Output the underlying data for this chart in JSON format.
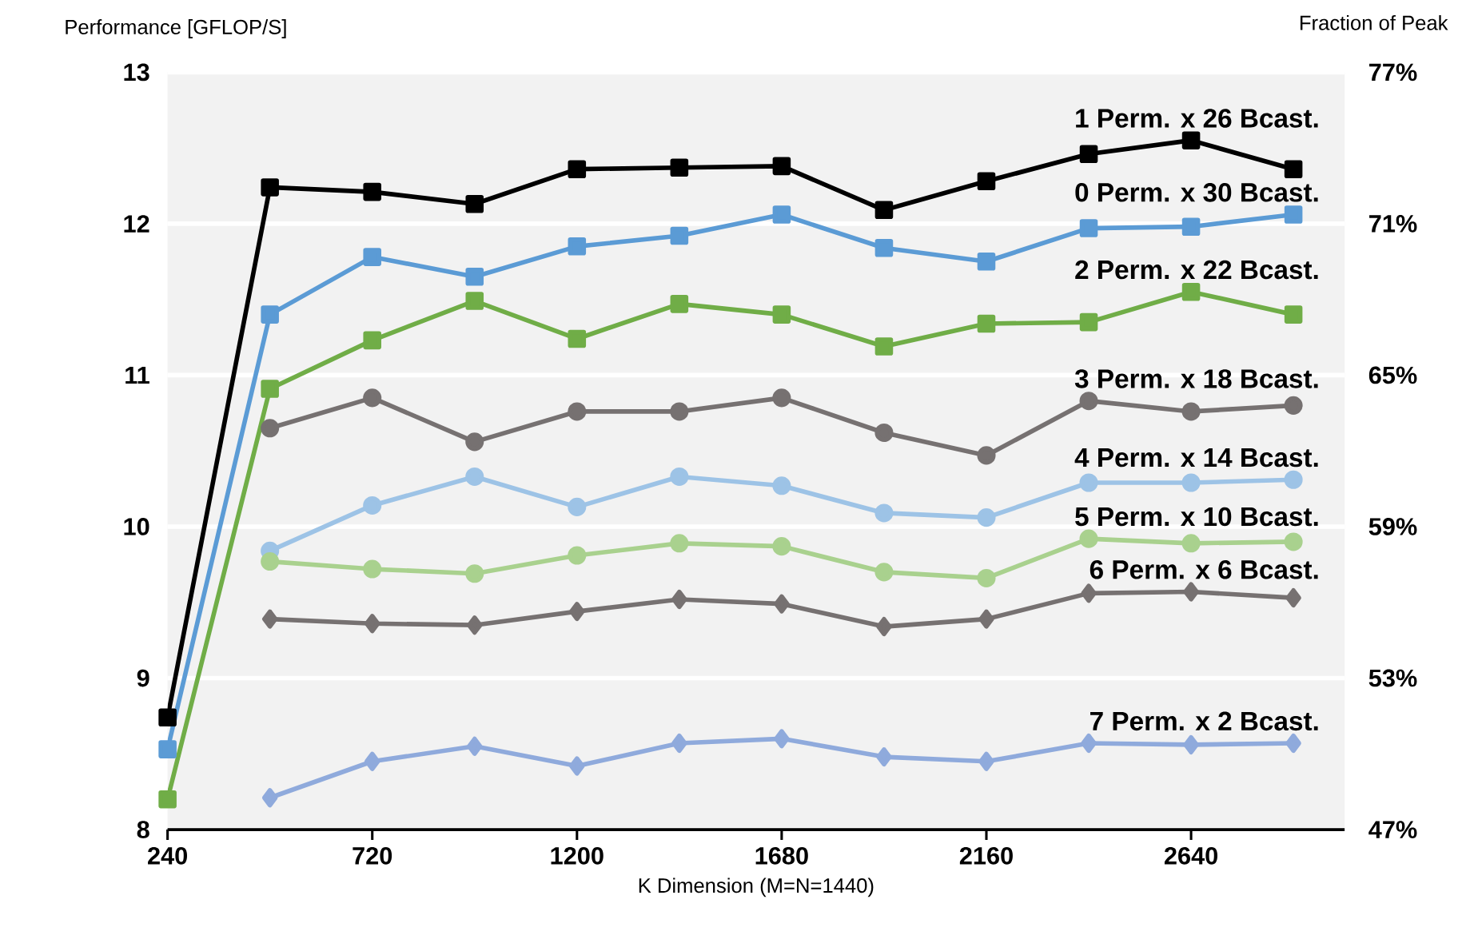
{
  "chart_data": {
    "type": "line",
    "xlabel": "K Dimension (M=N=1440)",
    "ylabel": "Performance [GFLOP/S]",
    "y2label": "Fraction of Peak",
    "x": [
      240,
      480,
      720,
      960,
      1200,
      1440,
      1680,
      1920,
      2160,
      2400,
      2640,
      2880
    ],
    "xlim": [
      240,
      3000
    ],
    "xticks": [
      240,
      720,
      1200,
      1680,
      2160,
      2640
    ],
    "ylim": [
      8,
      13
    ],
    "yticks": [
      8,
      9,
      10,
      11,
      12,
      13
    ],
    "y2lim": [
      47,
      77
    ],
    "y2ticks": [
      {
        "value": 47,
        "label": "47%"
      },
      {
        "value": 53,
        "label": "53%"
      },
      {
        "value": 59,
        "label": "59%"
      },
      {
        "value": 65,
        "label": "65%"
      },
      {
        "value": 71,
        "label": "71%"
      },
      {
        "value": 77,
        "label": "77%"
      }
    ],
    "grid": "y",
    "series": [
      {
        "name": "1 Perm. x 26 Bcast.",
        "color": "#000000",
        "marker": "square",
        "values": [
          8.74,
          12.24,
          12.21,
          12.13,
          12.36,
          12.37,
          12.38,
          12.09,
          12.28,
          12.46,
          12.55,
          12.36
        ]
      },
      {
        "name": "0 Perm. x 30 Bcast.",
        "color": "#5b9bd5",
        "marker": "square",
        "values": [
          8.53,
          11.4,
          11.78,
          11.65,
          11.85,
          11.92,
          12.06,
          11.84,
          11.75,
          11.97,
          11.98,
          12.06
        ]
      },
      {
        "name": "2 Perm. x 22 Bcast.",
        "color": "#70ad47",
        "marker": "square",
        "values": [
          8.2,
          10.91,
          11.23,
          11.49,
          11.24,
          11.47,
          11.4,
          11.19,
          11.34,
          11.35,
          11.55,
          11.4
        ]
      },
      {
        "name": "3 Perm. x 18 Bcast.",
        "color": "#767171",
        "marker": "circle",
        "values": [
          null,
          10.65,
          10.85,
          10.56,
          10.76,
          10.76,
          10.85,
          10.62,
          10.47,
          10.83,
          10.76,
          10.8
        ]
      },
      {
        "name": "4 Perm. x 14 Bcast.",
        "color": "#9dc3e6",
        "marker": "circle",
        "values": [
          null,
          9.84,
          10.14,
          10.33,
          10.13,
          10.33,
          10.27,
          10.09,
          10.06,
          10.29,
          10.29,
          10.31
        ]
      },
      {
        "name": "5 Perm. x 10 Bcast.",
        "color": "#a9d18e",
        "marker": "circle",
        "values": [
          null,
          9.77,
          9.72,
          9.69,
          9.81,
          9.89,
          9.87,
          9.7,
          9.66,
          9.92,
          9.89,
          9.9
        ]
      },
      {
        "name": "6 Perm. x 6 Bcast.",
        "color": "#767171",
        "marker": "diamond",
        "values": [
          null,
          9.39,
          9.36,
          9.35,
          9.44,
          9.52,
          9.49,
          9.34,
          9.39,
          9.56,
          9.57,
          9.53
        ]
      },
      {
        "name": "7 Perm. x 2 Bcast.",
        "color": "#8faadc",
        "marker": "diamond",
        "values": [
          null,
          8.21,
          8.45,
          8.55,
          8.42,
          8.57,
          8.6,
          8.48,
          8.45,
          8.57,
          8.56,
          8.57
        ]
      }
    ]
  }
}
